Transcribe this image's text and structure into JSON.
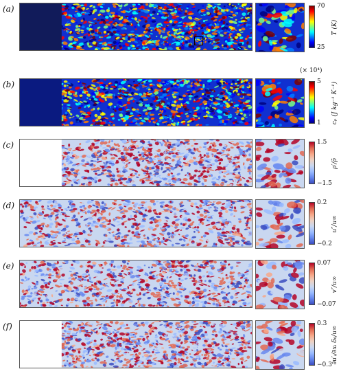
{
  "panels": [
    {
      "label": "(a)",
      "colormap": "jet",
      "field_variable": "T (K)",
      "colorbar": {
        "max": "70",
        "min": "25",
        "title": "T (K)",
        "scale": ""
      },
      "has_inset_box": true,
      "inflow_fraction": 0.18,
      "inflow_color": "#111b5a"
    },
    {
      "label": "(b)",
      "colormap": "jet",
      "field_variable": "c_p (J kg⁻¹ K⁻¹)",
      "colorbar": {
        "max": "5",
        "min": "1",
        "title": "cₚ (J kg⁻¹ K⁻¹)",
        "scale": "(× 10⁴)"
      },
      "has_inset_box": false,
      "inflow_fraction": 0.18,
      "inflow_color": "#0a1a80"
    },
    {
      "label": "(c)",
      "colormap": "coolwarm",
      "field_variable": "ρ′/ρ̄",
      "colorbar": {
        "max": "1.5",
        "min": "−1.5",
        "title": "ρ′/ρ̄",
        "scale": ""
      },
      "has_inset_box": false,
      "inflow_fraction": 0.18,
      "inflow_color": "#ffffff"
    },
    {
      "label": "(d)",
      "colormap": "coolwarm",
      "field_variable": "u″/u∞",
      "colorbar": {
        "max": "0.2",
        "min": "−0.2",
        "title": "u″/u∞",
        "scale": ""
      },
      "has_inset_box": false,
      "inflow_fraction": 0.0,
      "inflow_color": ""
    },
    {
      "label": "(e)",
      "colormap": "coolwarm",
      "field_variable": "v″/u∞",
      "colorbar": {
        "max": "0.07",
        "min": "−0.07",
        "title": "v″/u∞",
        "scale": ""
      },
      "has_inset_box": false,
      "inflow_fraction": 0.0,
      "inflow_color": ""
    },
    {
      "label": "(f)",
      "colormap": "coolwarm",
      "field_variable": "∂u′ᵢ/∂xᵢ δ₀/u∞",
      "colorbar": {
        "max": "0.3",
        "min": "−0.3",
        "title": "∂u′ᵢ/∂xᵢ δ₀/u∞",
        "scale": ""
      },
      "has_inset_box": false,
      "inflow_fraction": 0.18,
      "inflow_color": "#ffffff"
    }
  ]
}
